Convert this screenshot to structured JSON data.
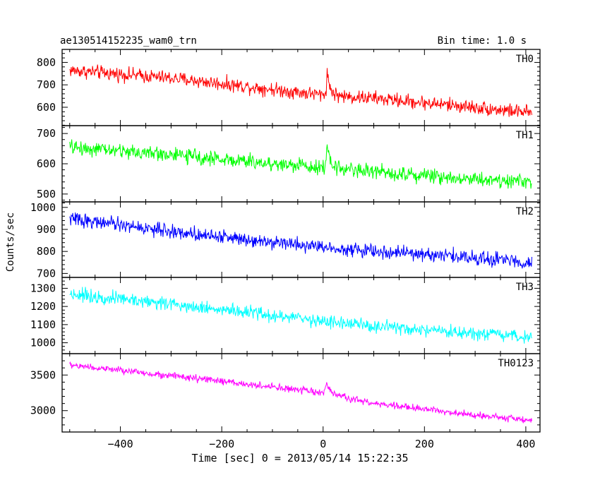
{
  "header": {
    "title": "ae130514152235_wam0_trn",
    "bin_time": "Bin time: 1.0 s"
  },
  "chart_data": {
    "type": "line",
    "xlabel": "Time [sec] 0 = 2013/05/14 15:22:35",
    "ylabel": "Counts/sec",
    "xlim": [
      -515,
      428
    ],
    "x_ticks": [
      -400,
      -200,
      0,
      200,
      400
    ],
    "x_tick_labels": [
      "−400",
      "−200",
      "0",
      "200",
      "400"
    ],
    "x_range": [
      -500,
      412
    ],
    "grid": false,
    "panels": [
      {
        "name": "TH0",
        "color": "#ff0000",
        "ylim": [
          518,
          858
        ],
        "y_ticks": [
          600,
          700,
          800
        ],
        "y_tick_labels": [
          "600",
          "700",
          "800"
        ],
        "trend": [
          [
            -500,
            765
          ],
          [
            -300,
            730
          ],
          [
            -100,
            680
          ],
          [
            0,
            655
          ],
          [
            100,
            640
          ],
          [
            250,
            610
          ],
          [
            412,
            575
          ]
        ],
        "noise": 27,
        "spikes": [
          [
            8,
            100
          ]
        ]
      },
      {
        "name": "TH1",
        "color": "#00ff00",
        "ylim": [
          474,
          726
        ],
        "y_ticks": [
          500,
          600,
          700
        ],
        "y_tick_labels": [
          "500",
          "600",
          "700"
        ],
        "trend": [
          [
            -500,
            655
          ],
          [
            -300,
            630
          ],
          [
            -100,
            600
          ],
          [
            0,
            590
          ],
          [
            100,
            575
          ],
          [
            250,
            555
          ],
          [
            412,
            540
          ]
        ],
        "noise": 21,
        "spikes": [
          [
            8,
            60
          ]
        ]
      },
      {
        "name": "TH2",
        "color": "#0000ff",
        "ylim": [
          682,
          1025
        ],
        "y_ticks": [
          700,
          800,
          900,
          1000
        ],
        "y_tick_labels": [
          "700",
          "800",
          "900",
          "1000"
        ],
        "trend": [
          [
            -500,
            950
          ],
          [
            -300,
            890
          ],
          [
            -100,
            845
          ],
          [
            0,
            820
          ],
          [
            100,
            800
          ],
          [
            250,
            780
          ],
          [
            412,
            750
          ]
        ],
        "noise": 27,
        "spikes": []
      },
      {
        "name": "TH3",
        "color": "#00ffff",
        "ylim": [
          940,
          1360
        ],
        "y_ticks": [
          1000,
          1100,
          1200,
          1300
        ],
        "y_tick_labels": [
          "1000",
          "1100",
          "1200",
          "1300"
        ],
        "trend": [
          [
            -500,
            1270
          ],
          [
            -300,
            1215
          ],
          [
            -100,
            1150
          ],
          [
            0,
            1120
          ],
          [
            100,
            1090
          ],
          [
            250,
            1055
          ],
          [
            412,
            1030
          ]
        ],
        "noise": 32,
        "spikes": []
      },
      {
        "name": "TH0123",
        "color": "#ff00ff",
        "ylim": [
          2700,
          3800
        ],
        "y_ticks": [
          3000,
          3500
        ],
        "y_tick_labels": [
          "3000",
          "3500"
        ],
        "trend": [
          [
            -500,
            3640
          ],
          [
            -300,
            3490
          ],
          [
            -100,
            3330
          ],
          [
            0,
            3250
          ],
          [
            100,
            3100
          ],
          [
            250,
            2980
          ],
          [
            412,
            2860
          ]
        ],
        "noise": 42,
        "spikes": [
          [
            6,
            160
          ]
        ]
      }
    ]
  }
}
